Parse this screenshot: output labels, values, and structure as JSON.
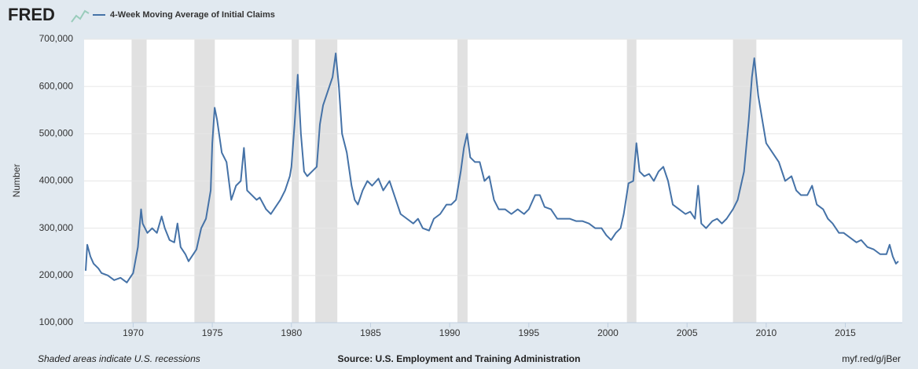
{
  "chart_data": {
    "type": "line",
    "logo": "FRED",
    "y_label": "Number",
    "note": "Shaded areas indicate U.S. recessions",
    "source": "Source: U.S. Employment and Training Administration",
    "link": "myf.red/g/jBer",
    "xlim": [
      1966.9,
      2018.6
    ],
    "ylim": [
      100000,
      700000
    ],
    "xticks": [
      1970,
      1975,
      1980,
      1985,
      1990,
      1995,
      2000,
      2005,
      2010,
      2015
    ],
    "yticks": [
      {
        "value": 100000,
        "label": "100,000"
      },
      {
        "value": 200000,
        "label": "200,000"
      },
      {
        "value": 300000,
        "label": "300,000"
      },
      {
        "value": 400000,
        "label": "400,000"
      },
      {
        "value": 500000,
        "label": "500,000"
      },
      {
        "value": 600000,
        "label": "600,000"
      },
      {
        "value": 700000,
        "label": "700,000"
      }
    ],
    "grid": true,
    "recession_color": "#e1e1e1",
    "recessions": [
      [
        1969.9,
        1970.85
      ],
      [
        1973.87,
        1975.16
      ],
      [
        1980.02,
        1980.47
      ],
      [
        1981.51,
        1982.9
      ],
      [
        1990.49,
        1991.13
      ],
      [
        2001.2,
        2001.8
      ],
      [
        2007.9,
        2009.38
      ]
    ],
    "x": [
      1967.0,
      1967.1,
      1967.3,
      1967.5,
      1967.8,
      1968.0,
      1968.4,
      1968.8,
      1969.2,
      1969.6,
      1969.8,
      1970.0,
      1970.3,
      1970.5,
      1970.6,
      1970.9,
      1971.2,
      1971.5,
      1971.8,
      1972.0,
      1972.3,
      1972.6,
      1972.8,
      1973.0,
      1973.3,
      1973.5,
      1973.8,
      1974.0,
      1974.3,
      1974.6,
      1974.9,
      1975.0,
      1975.15,
      1975.3,
      1975.6,
      1975.9,
      1976.2,
      1976.5,
      1976.8,
      1977.0,
      1977.2,
      1977.5,
      1977.8,
      1978.0,
      1978.4,
      1978.7,
      1979.0,
      1979.3,
      1979.6,
      1979.9,
      1980.0,
      1980.2,
      1980.4,
      1980.6,
      1980.8,
      1981.0,
      1981.3,
      1981.6,
      1981.8,
      1982.0,
      1982.3,
      1982.6,
      1982.8,
      1983.0,
      1983.2,
      1983.5,
      1983.8,
      1984.0,
      1984.2,
      1984.5,
      1984.8,
      1985.1,
      1985.5,
      1985.8,
      1986.2,
      1986.5,
      1986.9,
      1987.3,
      1987.7,
      1988.0,
      1988.3,
      1988.7,
      1989.0,
      1989.4,
      1989.8,
      1990.1,
      1990.4,
      1990.7,
      1990.9,
      1991.1,
      1991.3,
      1991.6,
      1991.9,
      1992.2,
      1992.5,
      1992.8,
      1993.1,
      1993.5,
      1993.9,
      1994.3,
      1994.7,
      1995.0,
      1995.4,
      1995.7,
      1996.0,
      1996.4,
      1996.8,
      1997.2,
      1997.6,
      1998.0,
      1998.4,
      1998.8,
      1999.2,
      1999.6,
      1999.9,
      2000.2,
      2000.5,
      2000.8,
      2001.0,
      2001.3,
      2001.6,
      2001.8,
      2002.0,
      2002.3,
      2002.6,
      2002.9,
      2003.2,
      2003.5,
      2003.8,
      2004.1,
      2004.5,
      2004.9,
      2005.2,
      2005.5,
      2005.7,
      2005.9,
      2006.2,
      2006.6,
      2006.9,
      2007.2,
      2007.5,
      2007.9,
      2008.2,
      2008.6,
      2008.9,
      2009.1,
      2009.25,
      2009.5,
      2009.8,
      2010.0,
      2010.4,
      2010.8,
      2011.2,
      2011.6,
      2011.9,
      2012.2,
      2012.6,
      2012.9,
      2013.2,
      2013.6,
      2013.9,
      2014.2,
      2014.6,
      2014.9,
      2015.3,
      2015.7,
      2016.0,
      2016.4,
      2016.8,
      2017.2,
      2017.6,
      2017.8,
      2018.0,
      2018.2,
      2018.35
    ],
    "series": [
      {
        "name": "4-Week Moving Average of Initial Claims",
        "color": "#4572a7",
        "values": [
          210000,
          265000,
          240000,
          225000,
          215000,
          205000,
          200000,
          190000,
          195000,
          185000,
          195000,
          205000,
          260000,
          340000,
          310000,
          290000,
          300000,
          290000,
          325000,
          300000,
          275000,
          270000,
          310000,
          260000,
          245000,
          230000,
          245000,
          255000,
          300000,
          320000,
          380000,
          480000,
          555000,
          530000,
          460000,
          440000,
          360000,
          390000,
          400000,
          470000,
          380000,
          370000,
          360000,
          365000,
          340000,
          330000,
          345000,
          360000,
          380000,
          410000,
          430000,
          520000,
          625000,
          500000,
          420000,
          410000,
          420000,
          430000,
          520000,
          560000,
          590000,
          620000,
          670000,
          600000,
          500000,
          460000,
          390000,
          360000,
          350000,
          380000,
          400000,
          390000,
          405000,
          380000,
          400000,
          370000,
          330000,
          320000,
          310000,
          320000,
          300000,
          295000,
          320000,
          330000,
          350000,
          350000,
          360000,
          420000,
          470000,
          500000,
          450000,
          440000,
          440000,
          400000,
          410000,
          360000,
          340000,
          340000,
          330000,
          340000,
          330000,
          340000,
          370000,
          370000,
          345000,
          340000,
          320000,
          320000,
          320000,
          315000,
          315000,
          310000,
          300000,
          300000,
          285000,
          275000,
          290000,
          300000,
          330000,
          395000,
          400000,
          480000,
          420000,
          410000,
          415000,
          400000,
          420000,
          430000,
          400000,
          350000,
          340000,
          330000,
          335000,
          320000,
          390000,
          310000,
          300000,
          315000,
          320000,
          310000,
          320000,
          340000,
          360000,
          420000,
          530000,
          620000,
          660000,
          580000,
          520000,
          480000,
          460000,
          440000,
          400000,
          410000,
          380000,
          370000,
          370000,
          390000,
          350000,
          340000,
          320000,
          310000,
          290000,
          290000,
          280000,
          270000,
          275000,
          260000,
          255000,
          245000,
          245000,
          265000,
          240000,
          225000,
          230000
        ]
      }
    ]
  }
}
